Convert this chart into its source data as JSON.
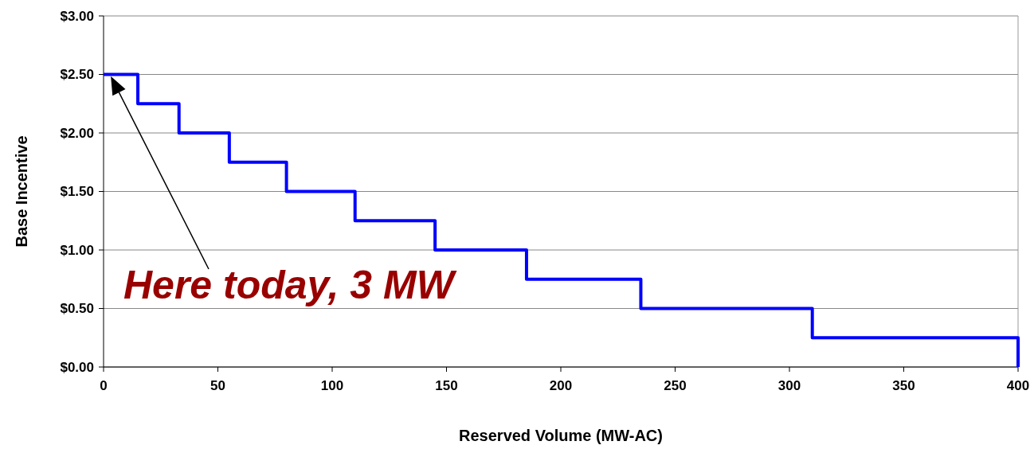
{
  "chart_data": {
    "type": "step",
    "xlabel": "Reserved Volume (MW-AC)",
    "ylabel": "Base Incentive",
    "x": [
      0,
      15,
      33,
      55,
      80,
      110,
      145,
      185,
      235,
      310,
      400
    ],
    "series": [
      {
        "color": "#0000ff",
        "values": [
          2.5,
          2.25,
          2.0,
          1.75,
          1.5,
          1.25,
          1.0,
          0.75,
          0.5,
          0.25,
          0
        ]
      }
    ],
    "xlim": [
      0,
      400
    ],
    "xticks": [
      0,
      50,
      100,
      150,
      200,
      250,
      300,
      350,
      400
    ],
    "ylim": [
      0,
      3
    ],
    "yticks": [
      {
        "value": 0,
        "label": "$0.00"
      },
      {
        "value": 0.5,
        "label": "$0.50"
      },
      {
        "value": 1,
        "label": "$1.00"
      },
      {
        "value": 1.5,
        "label": "$1.50"
      },
      {
        "value": 2,
        "label": "$2.00"
      },
      {
        "value": 2.5,
        "label": "$2.50"
      },
      {
        "value": 3,
        "label": "$3.00"
      }
    ],
    "grid": "y",
    "marker": "none",
    "line_style": "solid",
    "annotations": [
      "Here today, 3 MW"
    ]
  }
}
